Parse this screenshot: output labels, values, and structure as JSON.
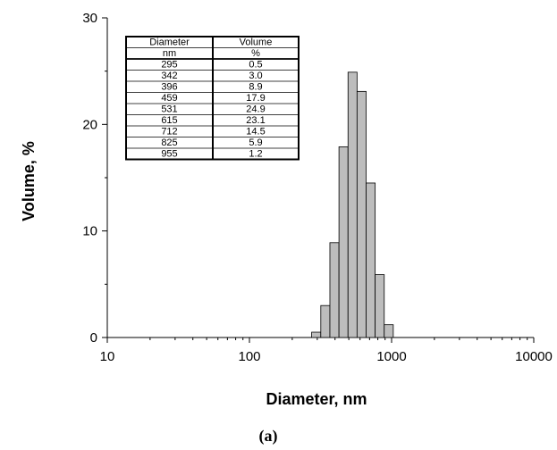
{
  "chart_data": {
    "type": "bar",
    "xlabel": "Diameter, nm",
    "ylabel": "Volume, %",
    "caption": "(a)",
    "x_scale": "log",
    "xlim": [
      10,
      10000
    ],
    "ylim": [
      0,
      30
    ],
    "x_ticks": [
      "10",
      "100",
      "1000",
      "10000"
    ],
    "y_ticks": [
      "0",
      "10",
      "20",
      "30"
    ],
    "grid": false,
    "bar_color": "#bdbdbd",
    "diameters": [
      295,
      342,
      396,
      459,
      531,
      615,
      712,
      825,
      955
    ],
    "values": [
      0.5,
      3.0,
      8.9,
      17.9,
      24.9,
      23.1,
      14.5,
      5.9,
      1.2
    ]
  },
  "table": {
    "headers": [
      "Diameter",
      "Volume"
    ],
    "units": [
      "nm",
      "%"
    ],
    "rows": [
      [
        "295",
        "0.5"
      ],
      [
        "342",
        "3.0"
      ],
      [
        "396",
        "8.9"
      ],
      [
        "459",
        "17.9"
      ],
      [
        "531",
        "24.9"
      ],
      [
        "615",
        "23.1"
      ],
      [
        "712",
        "14.5"
      ],
      [
        "825",
        "5.9"
      ],
      [
        "955",
        "1.2"
      ]
    ]
  }
}
